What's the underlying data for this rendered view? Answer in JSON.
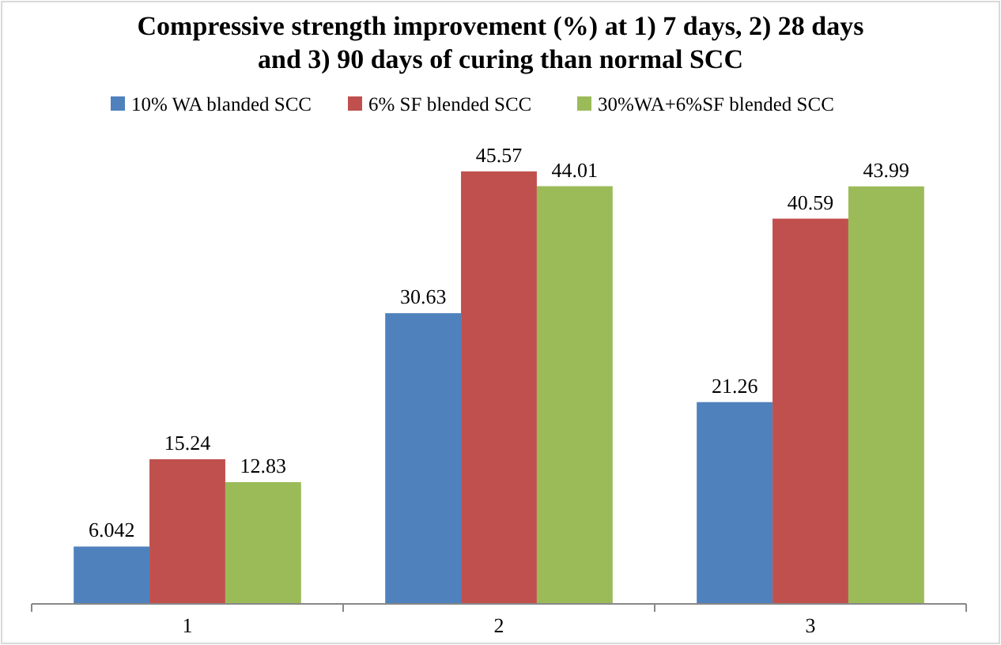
{
  "chart_data": {
    "type": "bar",
    "title": "Compressive strength improvement (%) at 1) 7 days, 2) 28 days\nand 3) 90 days of curing than normal SCC",
    "categories": [
      "1",
      "2",
      "3"
    ],
    "series": [
      {
        "name": "10% WA blanded SCC",
        "color": "#4f81bd",
        "values": [
          6.042,
          30.63,
          21.26
        ]
      },
      {
        "name": "6% SF blended SCC",
        "color": "#c0504d",
        "values": [
          15.24,
          45.57,
          40.59
        ]
      },
      {
        "name": "30%WA+6%SF blended SCC",
        "color": "#9bbb59",
        "values": [
          12.83,
          44.01,
          43.99
        ]
      }
    ],
    "data_labels": true,
    "legend": "top",
    "grid": false
  }
}
